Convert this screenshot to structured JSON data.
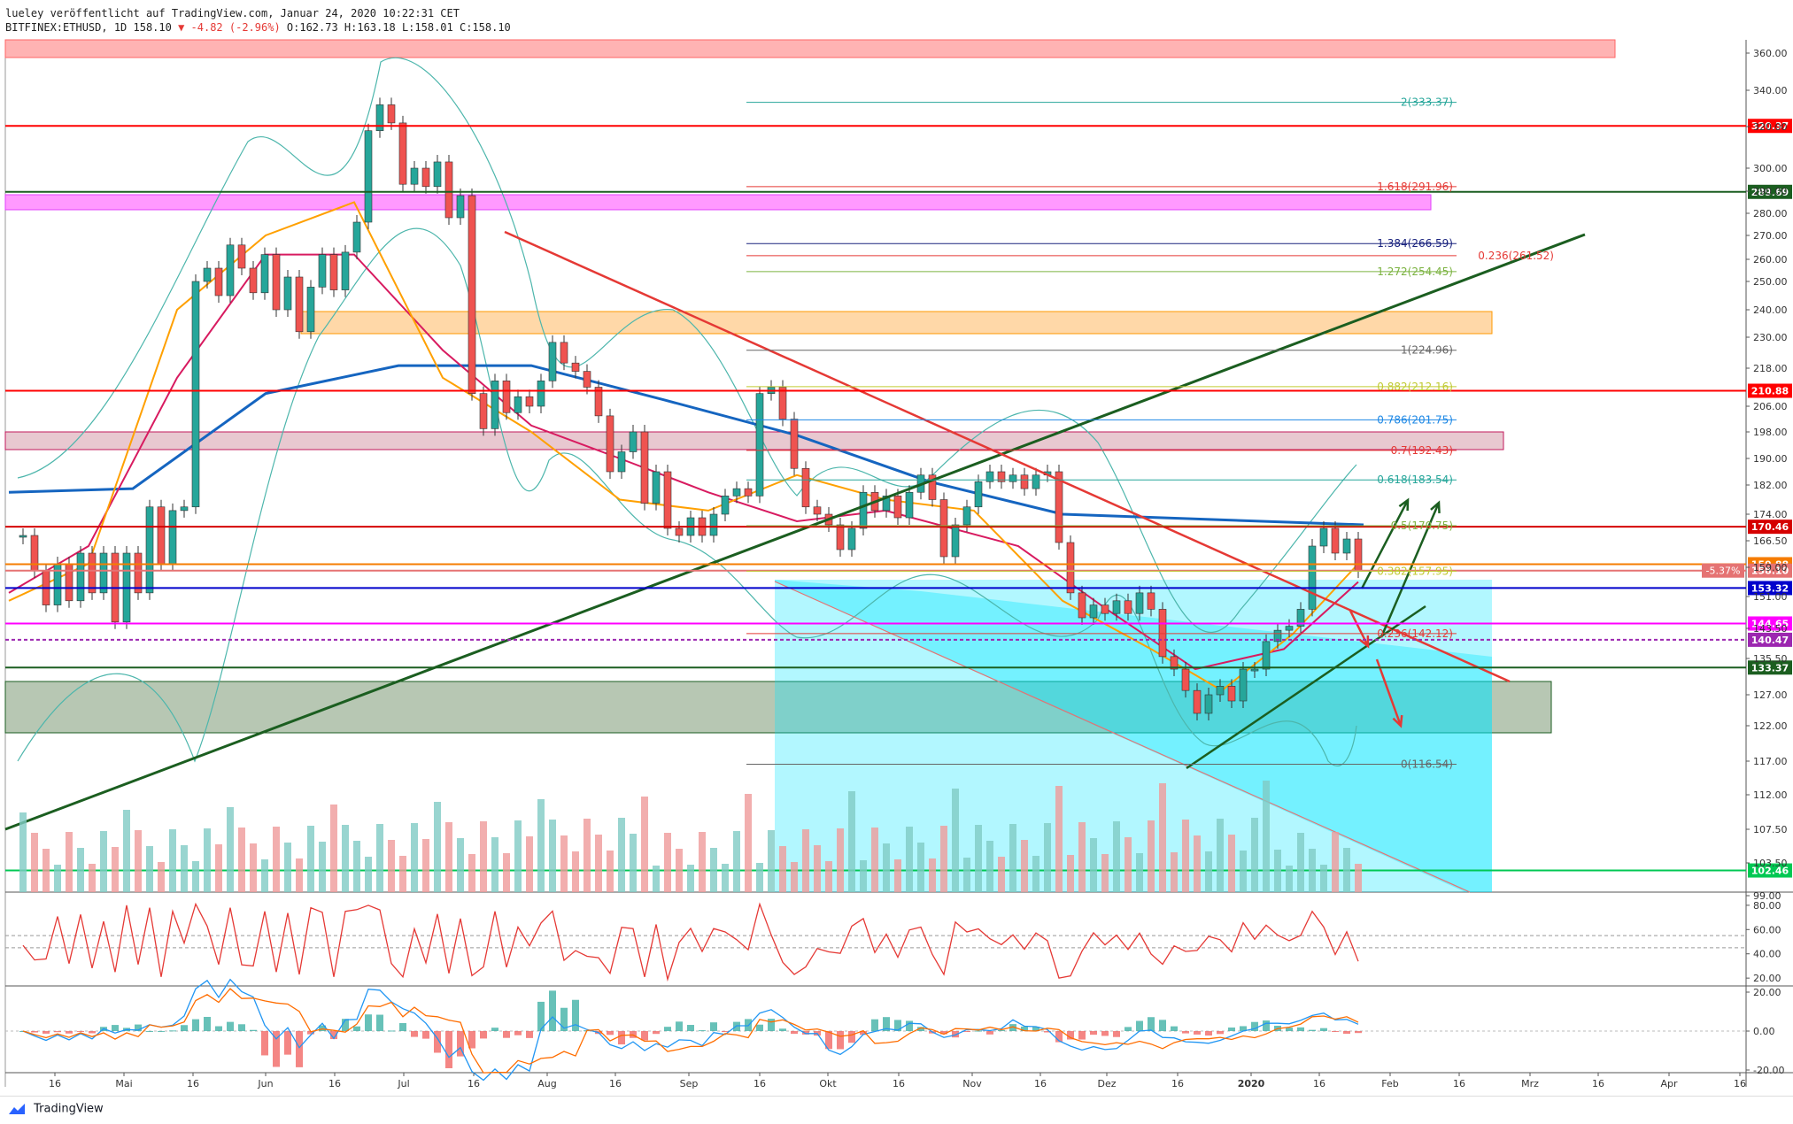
{
  "header": {
    "publisher_line": "lueley veröffentlicht auf TradingView.com, Januar 24, 2020 10:22:31 CET",
    "symbol": "BITFINEX:ETHUSD, 1D 158.10",
    "change": "▼ -4.82 (-2.96%)",
    "ohlc": "O:162.73 H:163.18 L:158.01 C:158.10"
  },
  "footer": {
    "brand": "TradingView"
  },
  "chart_data": {
    "type": "line",
    "title": "",
    "xlabel": "",
    "ylabel": "",
    "x_ticks": [
      "16",
      "Mai",
      "16",
      "Jun",
      "16",
      "Jul",
      "16",
      "Aug",
      "16",
      "Sep",
      "16",
      "Okt",
      "16",
      "Nov",
      "16",
      "Dez",
      "16",
      "2020",
      "16",
      "Feb",
      "16",
      "Mrz",
      "16",
      "Apr",
      "16"
    ],
    "y_ticks": [
      360,
      340,
      320,
      300,
      290,
      280,
      270,
      260,
      250,
      240,
      230,
      218,
      206,
      198,
      190,
      182,
      174,
      166.5,
      159,
      151,
      143.5,
      135.5,
      127,
      122,
      117,
      112,
      107.5,
      103.5,
      99
    ],
    "y_tick_labels": [
      "360.00",
      "340.00",
      "320.00",
      "300.00",
      "290.00",
      "280.00",
      "270.00",
      "260.00",
      "250.00",
      "240.00",
      "230.00",
      "218.00",
      "206.00",
      "198.00",
      "190.00",
      "182.00",
      "174.00",
      "166.50",
      "159.00",
      "151.00",
      "143.50",
      "135.50",
      "127.00",
      "122.00",
      "117.00",
      "112.00",
      "107.50",
      "103.50",
      "99.00"
    ],
    "ylim": [
      96,
      365
    ],
    "price_close": [
      [
        26,
        168
      ],
      [
        39,
        158
      ],
      [
        52,
        149
      ],
      [
        65,
        160
      ],
      [
        78,
        150
      ],
      [
        91,
        163
      ],
      [
        104,
        152
      ],
      [
        117,
        163
      ],
      [
        130,
        145
      ],
      [
        143,
        163
      ],
      [
        156,
        152
      ],
      [
        169,
        176
      ],
      [
        182,
        160
      ],
      [
        195,
        175
      ],
      [
        208,
        176
      ],
      [
        221,
        250
      ],
      [
        234,
        256
      ],
      [
        247,
        245
      ],
      [
        260,
        266
      ],
      [
        273,
        256
      ],
      [
        286,
        246
      ],
      [
        299,
        262
      ],
      [
        312,
        240
      ],
      [
        325,
        252
      ],
      [
        338,
        232
      ],
      [
        351,
        248
      ],
      [
        364,
        262
      ],
      [
        377,
        247
      ],
      [
        390,
        263
      ],
      [
        403,
        276
      ],
      [
        416,
        318
      ],
      [
        429,
        332
      ],
      [
        442,
        322
      ],
      [
        455,
        293
      ],
      [
        468,
        300
      ],
      [
        481,
        292
      ],
      [
        494,
        303
      ],
      [
        507,
        278
      ],
      [
        520,
        288
      ],
      [
        533,
        210
      ],
      [
        546,
        199
      ],
      [
        559,
        214
      ],
      [
        572,
        204
      ],
      [
        585,
        209
      ],
      [
        598,
        206
      ],
      [
        611,
        214
      ],
      [
        624,
        228
      ],
      [
        637,
        220
      ],
      [
        650,
        217
      ],
      [
        663,
        212
      ],
      [
        676,
        203
      ],
      [
        689,
        186
      ],
      [
        702,
        192
      ],
      [
        715,
        198
      ],
      [
        728,
        177
      ],
      [
        741,
        186
      ],
      [
        754,
        170
      ],
      [
        767,
        168
      ],
      [
        780,
        173
      ],
      [
        793,
        168
      ],
      [
        806,
        174
      ],
      [
        819,
        179
      ],
      [
        832,
        181
      ],
      [
        845,
        179
      ],
      [
        858,
        210
      ],
      [
        871,
        212
      ],
      [
        884,
        202
      ],
      [
        897,
        187
      ],
      [
        910,
        176
      ],
      [
        923,
        174
      ],
      [
        936,
        171
      ],
      [
        949,
        164
      ],
      [
        962,
        170
      ],
      [
        975,
        180
      ],
      [
        988,
        175
      ],
      [
        1001,
        179
      ],
      [
        1014,
        173
      ],
      [
        1027,
        180
      ],
      [
        1040,
        185
      ],
      [
        1053,
        178
      ],
      [
        1066,
        162
      ],
      [
        1079,
        171
      ],
      [
        1092,
        176
      ],
      [
        1105,
        183
      ],
      [
        1118,
        186
      ],
      [
        1131,
        183
      ],
      [
        1144,
        185
      ],
      [
        1157,
        181
      ],
      [
        1170,
        185
      ],
      [
        1183,
        186
      ],
      [
        1196,
        166
      ],
      [
        1209,
        152
      ],
      [
        1222,
        146
      ],
      [
        1235,
        149
      ],
      [
        1248,
        147
      ],
      [
        1261,
        150
      ],
      [
        1274,
        147
      ],
      [
        1287,
        152
      ],
      [
        1300,
        148
      ],
      [
        1313,
        136
      ],
      [
        1326,
        133
      ],
      [
        1339,
        128
      ],
      [
        1352,
        124
      ],
      [
        1365,
        127
      ],
      [
        1378,
        129
      ],
      [
        1391,
        126
      ],
      [
        1404,
        133
      ],
      [
        1417,
        133
      ],
      [
        1430,
        140
      ],
      [
        1443,
        143
      ],
      [
        1456,
        144
      ],
      [
        1469,
        148
      ],
      [
        1482,
        165
      ],
      [
        1495,
        170
      ],
      [
        1508,
        163
      ],
      [
        1521,
        167
      ],
      [
        1534,
        158
      ]
    ],
    "ma_blue": [
      [
        10,
        180
      ],
      [
        150,
        181
      ],
      [
        300,
        210
      ],
      [
        450,
        219
      ],
      [
        600,
        219
      ],
      [
        750,
        208
      ],
      [
        900,
        197
      ],
      [
        1050,
        183
      ],
      [
        1200,
        174
      ],
      [
        1540,
        171
      ]
    ],
    "ma_red": [
      [
        10,
        152
      ],
      [
        100,
        165
      ],
      [
        200,
        215
      ],
      [
        300,
        262
      ],
      [
        400,
        262
      ],
      [
        500,
        225
      ],
      [
        600,
        200
      ],
      [
        700,
        190
      ],
      [
        800,
        180
      ],
      [
        900,
        172
      ],
      [
        1000,
        175
      ],
      [
        1150,
        165
      ],
      [
        1250,
        148
      ],
      [
        1350,
        133
      ],
      [
        1450,
        138
      ],
      [
        1534,
        155
      ]
    ],
    "ma_yellow": [
      [
        10,
        150
      ],
      [
        100,
        160
      ],
      [
        200,
        240
      ],
      [
        300,
        270
      ],
      [
        400,
        285
      ],
      [
        500,
        215
      ],
      [
        600,
        198
      ],
      [
        700,
        178
      ],
      [
        800,
        175
      ],
      [
        900,
        185
      ],
      [
        1000,
        178
      ],
      [
        1100,
        175
      ],
      [
        1200,
        150
      ],
      [
        1300,
        138
      ],
      [
        1380,
        128
      ],
      [
        1460,
        142
      ],
      [
        1534,
        160
      ]
    ],
    "horizontal_levels": [
      {
        "price": 320.37,
        "label": "320.37",
        "color": "#ff0000"
      },
      {
        "price": 289.69,
        "label": "289.69",
        "color": "#1b5e20"
      },
      {
        "price": 210.88,
        "label": "210.88",
        "color": "#ff0000"
      },
      {
        "price": 170.46,
        "label": "170.46",
        "color": "#d50000"
      },
      {
        "price": 159.88,
        "label": "159.88",
        "color": "#f57c00"
      },
      {
        "price": 158.1,
        "label": "158.10",
        "color": "#e57373"
      },
      {
        "price": 153.32,
        "label": "153.32",
        "color": "#0000cc"
      },
      {
        "price": 144.65,
        "label": "144.65",
        "color": "#ff00ff"
      },
      {
        "price": 140.47,
        "label": "140.47",
        "color": "#9c27b0"
      },
      {
        "price": 133.37,
        "label": "133.37",
        "color": "#1b5e20"
      },
      {
        "price": 102.46,
        "label": "102.46",
        "color": "#00c853"
      }
    ],
    "change_badge": "-5.37%",
    "fib_levels": [
      {
        "price": 333.37,
        "label": "2(333.37)",
        "color": "#26a69a"
      },
      {
        "price": 291.96,
        "label": "1.618(291.96)",
        "color": "#e53935"
      },
      {
        "price": 266.59,
        "label": "1.384(266.59)",
        "color": "#1a237e"
      },
      {
        "price": 261.52,
        "label": "0.236(261.52)",
        "color": "#e53935"
      },
      {
        "price": 254.45,
        "label": "1.272(254.45)",
        "color": "#7cb342"
      },
      {
        "price": 224.96,
        "label": "1(224.96)",
        "color": "#666666"
      },
      {
        "price": 212.16,
        "label": "0.882(212.16)",
        "color": "#c0ca33"
      },
      {
        "price": 201.75,
        "label": "0.786(201.75)",
        "color": "#1e88e5"
      },
      {
        "price": 192.43,
        "label": "0.7(192.43)",
        "color": "#e53935"
      },
      {
        "price": 183.54,
        "label": "0.618(183.54)",
        "color": "#26a69a"
      },
      {
        "price": 170.75,
        "label": "0.5(170.75)",
        "color": "#7cb342"
      },
      {
        "price": 157.95,
        "label": "0.382(157.95)",
        "color": "#c0ca33"
      },
      {
        "price": 142.12,
        "label": "0.236(142.12)",
        "color": "#e53935"
      },
      {
        "price": 116.54,
        "label": "0(116.54)",
        "color": "#666666"
      }
    ],
    "rsi_ticks": [
      "80.00",
      "60.00",
      "40.00",
      "20.00"
    ],
    "macd_ticks": [
      "20.00",
      "0.00",
      "-20.00"
    ],
    "colors": {
      "up": "#26a69a",
      "down": "#ef5350",
      "ma200": "#1565c0",
      "trend_green": "#1b5e20",
      "trend_red": "#e53935",
      "channel": "#00e5ff"
    }
  }
}
